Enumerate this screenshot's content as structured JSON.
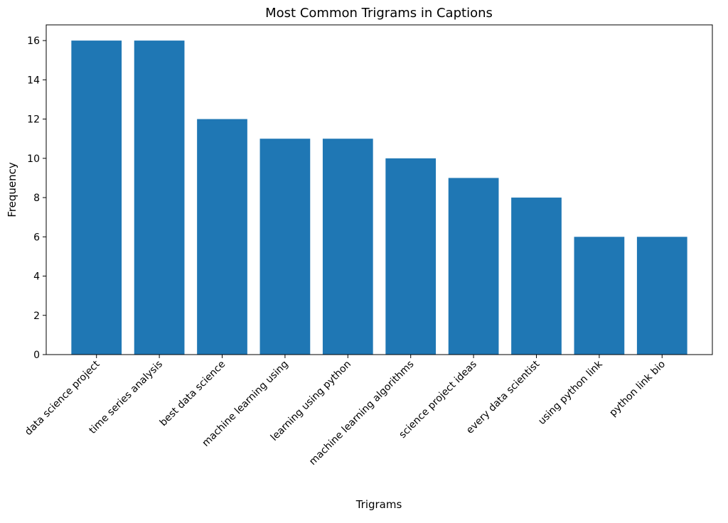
{
  "chart_data": {
    "type": "bar",
    "title": "Most Common Trigrams in Captions",
    "xlabel": "Trigrams",
    "ylabel": "Frequency",
    "categories": [
      "data science project",
      "time series analysis",
      "best data science",
      "machine learning using",
      "learning using python",
      "machine learning algorithms",
      "science project ideas",
      "every data scientist",
      "using python link",
      "python link bio"
    ],
    "values": [
      16,
      16,
      12,
      11,
      11,
      10,
      9,
      8,
      6,
      6
    ],
    "ylim": [
      0,
      16.8
    ],
    "yticks": [
      0,
      2,
      4,
      6,
      8,
      10,
      12,
      14,
      16
    ],
    "x_tick_rotation": 45,
    "grid": false,
    "legend": "none",
    "bar_color": "#1f77b4"
  }
}
